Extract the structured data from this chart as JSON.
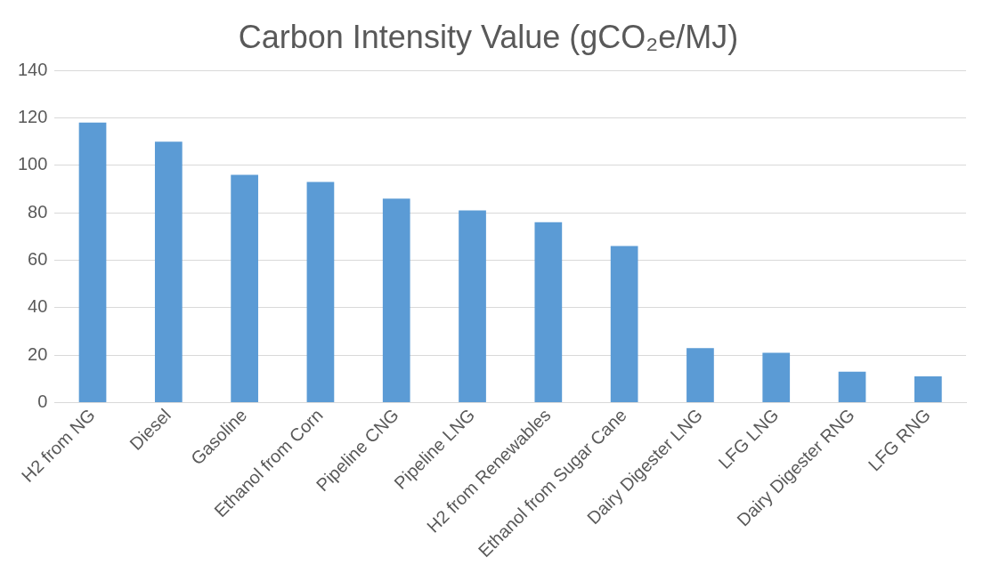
{
  "chart_data": {
    "type": "bar",
    "title": "Carbon Intensity Value (gCO₂e/MJ)",
    "categories": [
      "H2 from NG",
      "Diesel",
      "Gasoline",
      "Ethanol from Corn",
      "Pipeline CNG",
      "Pipeline LNG",
      "H2 from Renewables",
      "Ethanol from Sugar Cane",
      "Dairy Digester LNG",
      "LFG LNG",
      "Dairy Digester RNG",
      "LFG RNG"
    ],
    "values": [
      118,
      110,
      96,
      93,
      86,
      81,
      76,
      66,
      23,
      21,
      13,
      11
    ],
    "color": "#5b9bd5",
    "ylim": [
      0,
      140
    ],
    "yticks": [
      0,
      20,
      40,
      60,
      80,
      100,
      120,
      140
    ],
    "grid": "y",
    "legend": false
  }
}
